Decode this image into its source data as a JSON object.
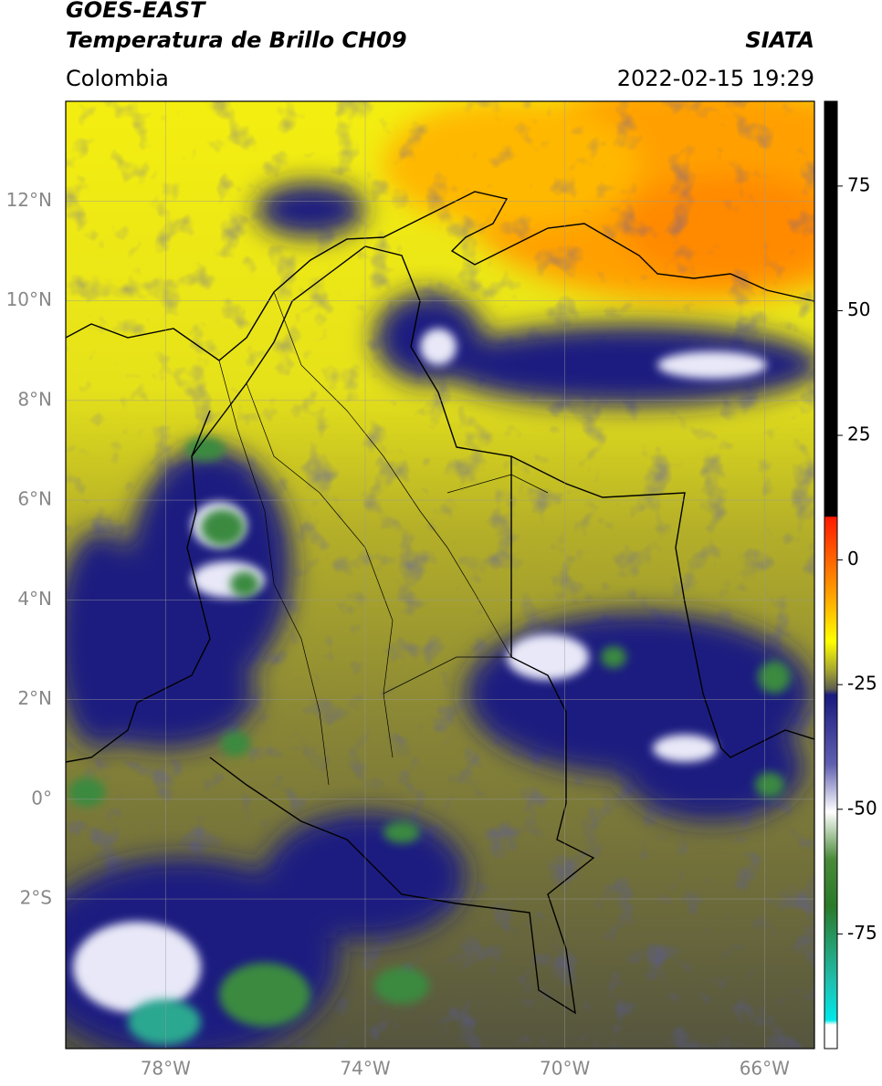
{
  "header": {
    "title": "GOES-EAST",
    "subtitle": "Temperatura de Brillo CH09",
    "source": "SIATA",
    "region": "Colombia",
    "timestamp": "2022-02-15 19:29"
  },
  "map": {
    "xlim": [
      -80,
      -65
    ],
    "ylim": [
      -5,
      14
    ],
    "grid": true,
    "xticks": [
      {
        "value": -78,
        "label": "78°W"
      },
      {
        "value": -74,
        "label": "74°W"
      },
      {
        "value": -70,
        "label": "70°W"
      },
      {
        "value": -66,
        "label": "66°W"
      }
    ],
    "yticks": [
      {
        "value": 12,
        "label": "12°N"
      },
      {
        "value": 10,
        "label": "10°N"
      },
      {
        "value": 8,
        "label": "8°N"
      },
      {
        "value": 6,
        "label": "6°N"
      },
      {
        "value": 4,
        "label": "4°N"
      },
      {
        "value": 2,
        "label": "2°N"
      },
      {
        "value": 0,
        "label": "0°"
      },
      {
        "value": -2,
        "label": "2°S"
      }
    ]
  },
  "colorbar": {
    "lim": [
      -98,
      92
    ],
    "ticks": [
      -75,
      -50,
      -25,
      0,
      25,
      50,
      75
    ]
  }
}
